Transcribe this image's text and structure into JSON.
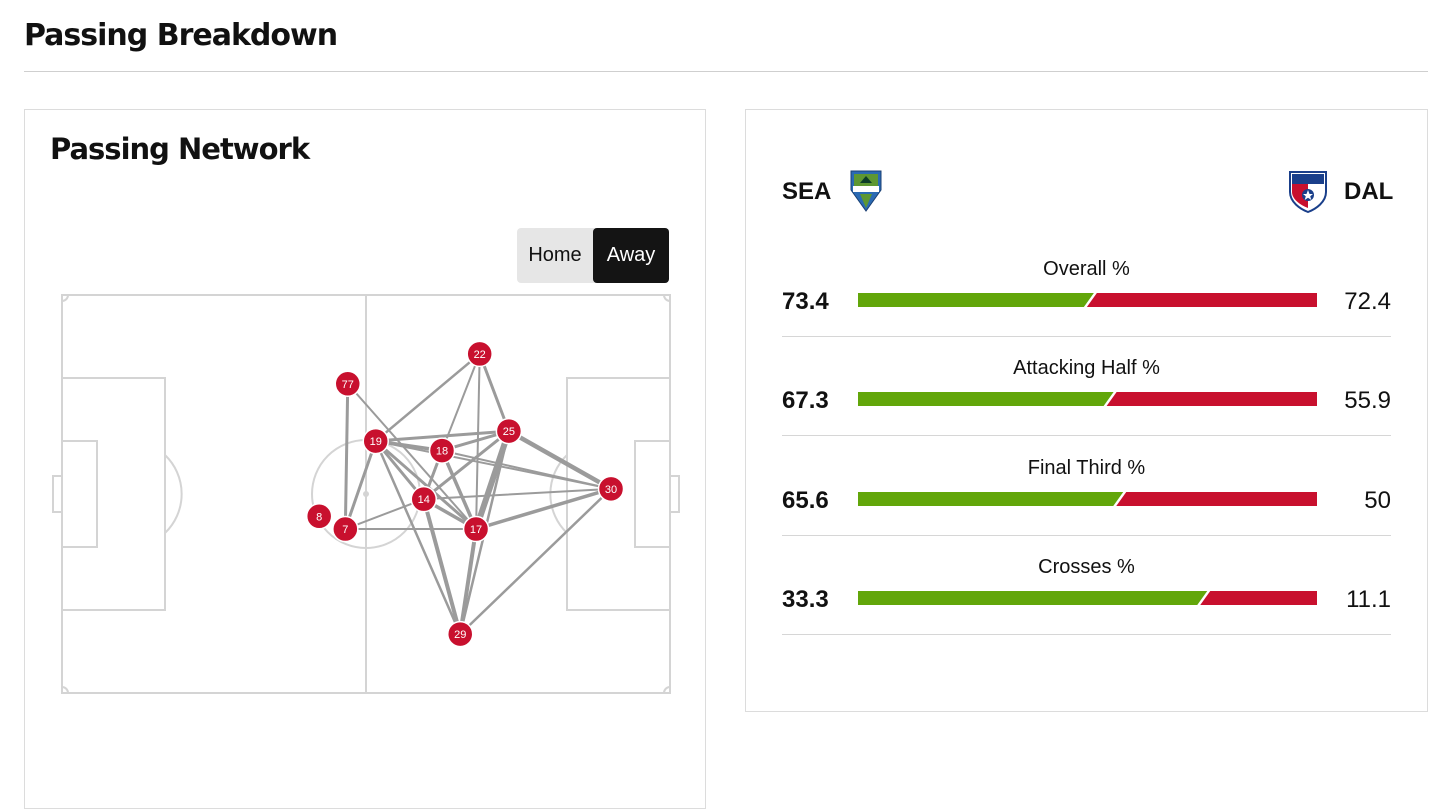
{
  "page": {
    "title": "Passing Breakdown"
  },
  "network": {
    "title": "Passing Network",
    "toggle": [
      {
        "label": "Home",
        "active": false
      },
      {
        "label": "Away",
        "active": true
      }
    ],
    "node_color": "#c8102e",
    "players": [
      {
        "id": "22",
        "x": 68.7,
        "y": 14.8
      },
      {
        "id": "77",
        "x": 47.0,
        "y": 22.3
      },
      {
        "id": "25",
        "x": 73.5,
        "y": 34.2
      },
      {
        "id": "19",
        "x": 51.6,
        "y": 36.7
      },
      {
        "id": "18",
        "x": 62.5,
        "y": 39.1
      },
      {
        "id": "30",
        "x": 90.3,
        "y": 48.7
      },
      {
        "id": "14",
        "x": 59.5,
        "y": 51.3
      },
      {
        "id": "8",
        "x": 42.3,
        "y": 55.6
      },
      {
        "id": "7",
        "x": 46.6,
        "y": 58.8
      },
      {
        "id": "17",
        "x": 68.1,
        "y": 58.8
      },
      {
        "id": "29",
        "x": 65.5,
        "y": 85.2
      }
    ],
    "links": [
      {
        "from": "77",
        "to": "7",
        "w": 3
      },
      {
        "from": "77",
        "to": "17",
        "w": 2
      },
      {
        "from": "19",
        "to": "7",
        "w": 3
      },
      {
        "from": "19",
        "to": "22",
        "w": 2.5
      },
      {
        "from": "19",
        "to": "18",
        "w": 3.5
      },
      {
        "from": "19",
        "to": "25",
        "w": 3
      },
      {
        "from": "19",
        "to": "14",
        "w": 3
      },
      {
        "from": "19",
        "to": "17",
        "w": 3
      },
      {
        "from": "19",
        "to": "29",
        "w": 2.5
      },
      {
        "from": "19",
        "to": "30",
        "w": 2
      },
      {
        "from": "22",
        "to": "25",
        "w": 3
      },
      {
        "from": "22",
        "to": "18",
        "w": 2
      },
      {
        "from": "22",
        "to": "17",
        "w": 2
      },
      {
        "from": "25",
        "to": "18",
        "w": 3
      },
      {
        "from": "25",
        "to": "14",
        "w": 3
      },
      {
        "from": "25",
        "to": "17",
        "w": 6
      },
      {
        "from": "25",
        "to": "30",
        "w": 4.5
      },
      {
        "from": "25",
        "to": "29",
        "w": 2.5
      },
      {
        "from": "18",
        "to": "14",
        "w": 3
      },
      {
        "from": "18",
        "to": "17",
        "w": 3.5
      },
      {
        "from": "18",
        "to": "30",
        "w": 2
      },
      {
        "from": "14",
        "to": "17",
        "w": 3.5
      },
      {
        "from": "14",
        "to": "29",
        "w": 4
      },
      {
        "from": "14",
        "to": "30",
        "w": 2
      },
      {
        "from": "17",
        "to": "30",
        "w": 3.5
      },
      {
        "from": "17",
        "to": "29",
        "w": 4
      },
      {
        "from": "17",
        "to": "7",
        "w": 2
      },
      {
        "from": "29",
        "to": "30",
        "w": 2.5
      },
      {
        "from": "7",
        "to": "14",
        "w": 2
      }
    ]
  },
  "stats": {
    "home": {
      "code": "SEA",
      "logo": "seattle-sounders-logo"
    },
    "away": {
      "code": "DAL",
      "logo": "fc-dallas-logo"
    },
    "home_color": "#62a60a",
    "away_color": "#c8102e",
    "rows": [
      {
        "label": "Overall %",
        "home": "73.4",
        "away": "72.4",
        "home_share": 0.503
      },
      {
        "label": "Attacking Half %",
        "home": "67.3",
        "away": "55.9",
        "home_share": 0.546
      },
      {
        "label": "Final Third %",
        "home": "65.6",
        "away": "50",
        "home_share": 0.567
      },
      {
        "label": "Crosses %",
        "home": "33.3",
        "away": "11.1",
        "home_share": 0.75
      }
    ]
  }
}
